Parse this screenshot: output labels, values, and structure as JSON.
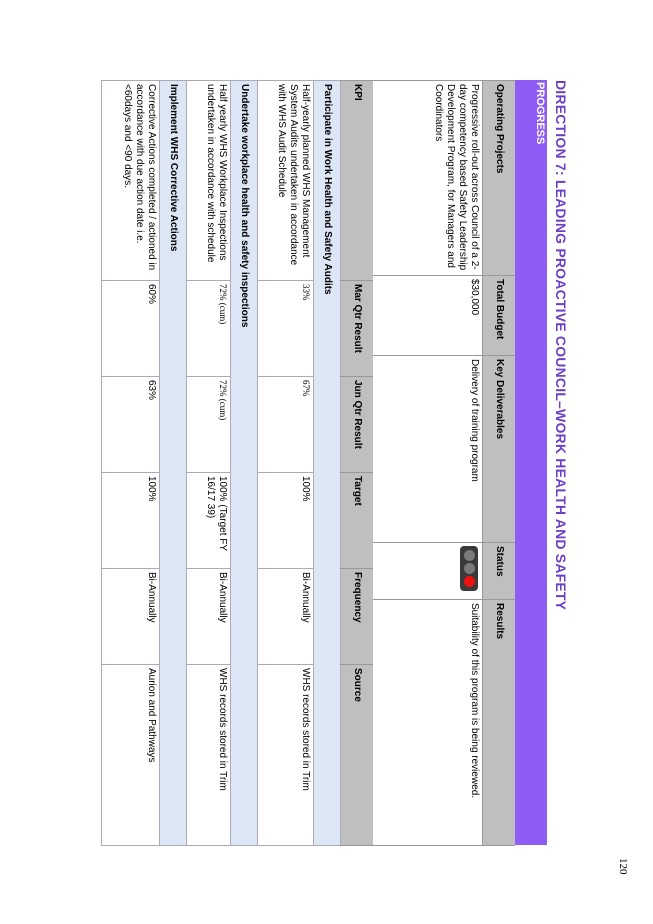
{
  "title": "DIRECTION 7: LEADING PROACTIVE COUNCIL–WORK HEALTH AND SAFETY",
  "progress_label": "PROGRESS",
  "projects": {
    "headers": [
      "Operating Projects",
      "Total Budget",
      "Key Deliverables",
      "Status",
      "Results"
    ],
    "rows": [
      {
        "project": "Progressive roll-out across Council of a 2-day competency based Safety Leadership Development Program, for Managers and Coordinators",
        "budget": "$30,000",
        "deliverables": "Delivery of training program",
        "status_icon": "traffic-light-red",
        "results": "Suitability of this program is being reviewed."
      }
    ]
  },
  "kpi": {
    "headers": [
      "KPI",
      "Mar Qtr Result",
      "Jun Qtr Result",
      "Target",
      "Frequency",
      "Source"
    ],
    "sections": [
      {
        "heading": "Participate in Work Health and Safety Audits",
        "kpi": "Half-yearly planned WHS Management System Audits undertaken in accordance with WHS Audit Schedule",
        "mar": "33%",
        "jun": "67%",
        "target": "100%",
        "frequency": "Bi-Annually",
        "source": "WHS records stored in Trim"
      },
      {
        "heading": "Undertake  workplace health and safety inspections",
        "kpi": "Half yearly WHS Workplace Inspections undertaken in accordance with schedule",
        "mar": "72% (cum)",
        "jun": "72% (cum)",
        "target": "100% (Target FY 16/17 39)",
        "frequency": "Bi-Annually",
        "source": "WHS records stored in Trim"
      },
      {
        "heading": "Implement WHS Corrective Actions",
        "kpi": "Corrective Actions completed / actioned in accordance with due action date i.e. <60days and <90 days.",
        "mar": "60%",
        "jun": "63%",
        "target": "100%",
        "frequency": "Bi-Annually",
        "source": "Aurion and Pathways"
      }
    ]
  },
  "page_number": "120",
  "colors": {
    "title": "#6c3fc5",
    "progress_bar": "#8f5cf5",
    "header_gray": "#bfbfbf",
    "section_blue": "#dce6f4",
    "status_red": "#ee1111"
  }
}
